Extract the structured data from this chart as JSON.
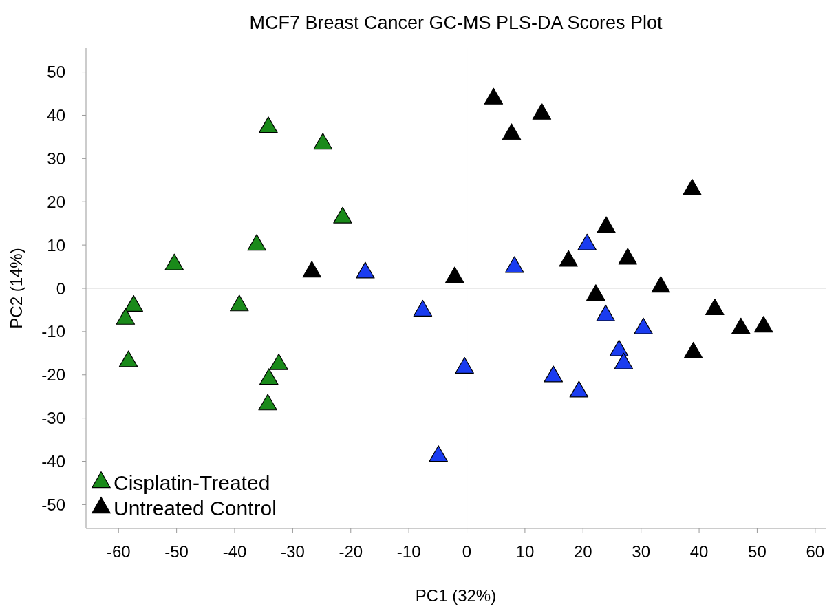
{
  "chart_data": {
    "type": "scatter",
    "title": "MCF7 Breast Cancer GC-MS PLS-DA Scores Plot",
    "xlabel": "PC1 (32%)",
    "ylabel": "PC2 (14%)",
    "xlim": [
      -65.6,
      61.8
    ],
    "ylim": [
      -55.5,
      55.5
    ],
    "xticks": [
      -60,
      -50,
      -40,
      -30,
      -20,
      -10,
      0,
      10,
      20,
      30,
      40,
      50,
      60
    ],
    "yticks": [
      -50,
      -40,
      -30,
      -20,
      -10,
      0,
      10,
      20,
      30,
      40,
      50
    ],
    "grid": false,
    "legend": "bottom left",
    "marker": "triangle",
    "ref_lines": [
      {
        "axis": "x",
        "value": 0,
        "color": "#cccccc"
      },
      {
        "axis": "y",
        "value": 0,
        "color": "#d6d6d6"
      }
    ],
    "series": [
      {
        "color": "#1a3cf0",
        "x": [
          -17.5,
          -7.6,
          -0.4,
          -4.9,
          8.2,
          20.7,
          23.9,
          30.4,
          26.2,
          27.0,
          14.9,
          19.3
        ],
        "values": [
          3.6,
          -5.2,
          -18.4,
          -38.8,
          4.9,
          10.1,
          -6.3,
          -9.3,
          -14.4,
          -17.4,
          -20.4,
          -23.9
        ]
      },
      {
        "name": "Cisplatin-Treated",
        "color": "#1a8a1a",
        "x": [
          -34.2,
          -24.8,
          -21.4,
          -36.2,
          -50.4,
          -57.4,
          -58.8,
          -39.2,
          -58.3,
          -32.4,
          -34.1,
          -34.3
        ],
        "values": [
          37.2,
          33.4,
          16.3,
          10.0,
          5.5,
          -4.1,
          -7.1,
          -4.0,
          -16.9,
          -17.6,
          -21.0,
          -26.9
        ]
      },
      {
        "name": "Untreated Control",
        "color": "#000000",
        "x": [
          -26.7,
          -2.1,
          4.6,
          7.7,
          12.9,
          24.0,
          17.5,
          27.7,
          22.2,
          33.4,
          38.8,
          42.7,
          47.2,
          51.1,
          39.0
        ],
        "values": [
          3.8,
          2.5,
          43.8,
          35.6,
          40.3,
          14.1,
          6.3,
          6.8,
          -1.6,
          0.3,
          22.8,
          -4.9,
          -9.3,
          -8.9,
          -14.9
        ]
      }
    ]
  }
}
